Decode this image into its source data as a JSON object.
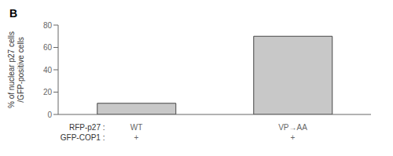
{
  "chart_data": {
    "type": "bar",
    "title": "B",
    "categories": [
      "WT\n+",
      "VP→AA\n+"
    ],
    "xlabel": "RFP-p27 :\nGFP-COP1 :",
    "ylabel": "% of nuclear p27 cells\n/GFP-positive cells",
    "values": [
      10,
      70
    ],
    "color": "#c8c8c8",
    "ylim": [
      0,
      80
    ],
    "yticks": [
      0,
      20,
      40,
      60,
      80
    ],
    "grid": false
  }
}
